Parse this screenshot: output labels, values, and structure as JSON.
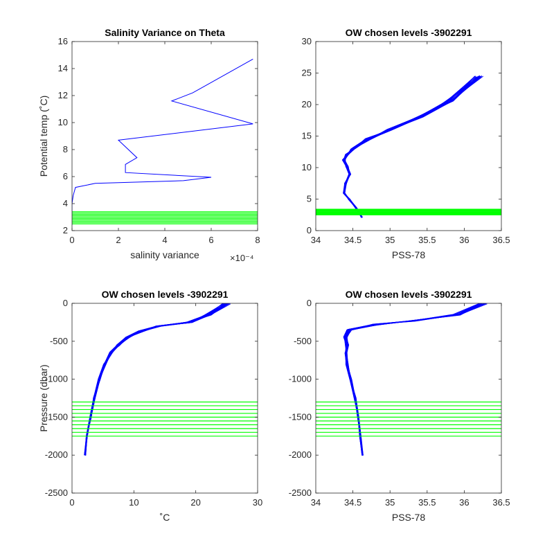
{
  "colors": {
    "profile": "#0000ff",
    "levels": "#00ff00",
    "axis": "#262626",
    "background": "#ffffff"
  },
  "chart_data": [
    {
      "type": "line",
      "title": "Salinity Variance on Theta",
      "xlabel": "salinity variance",
      "ylabel": "Potential temp (˚C)",
      "xlim": [
        0,
        8
      ],
      "ylim": [
        2,
        16
      ],
      "xticks": [
        "0",
        "2",
        "4",
        "6",
        "8"
      ],
      "yticks": [
        "2",
        "4",
        "6",
        "8",
        "10",
        "12",
        "14",
        "16"
      ],
      "x_exponent": "×10⁻⁴",
      "series": [
        {
          "kind": "profile",
          "x": [
            7.8,
            5.2,
            4.3,
            4.3,
            7.8,
            2.0,
            2.8,
            2.3,
            2.3,
            6.0,
            4.8,
            1.0,
            0.15,
            0.05,
            0.0,
            0.0
          ],
          "y": [
            14.7,
            12.2,
            11.6,
            11.6,
            9.9,
            8.7,
            7.4,
            6.9,
            6.3,
            5.95,
            5.7,
            5.5,
            5.2,
            4.6,
            4.0,
            2.4
          ]
        },
        {
          "kind": "chosen_levels",
          "y": [
            2.5,
            2.6,
            2.7,
            2.8,
            2.9,
            3.0,
            3.1,
            3.2,
            3.3,
            3.4
          ]
        }
      ]
    },
    {
      "type": "line",
      "title": "OW chosen levels -3902291",
      "xlabel": "PSS-78",
      "ylabel": "",
      "xlim": [
        34,
        36.5
      ],
      "ylim": [
        0,
        30
      ],
      "xticks": [
        "34",
        "34.5",
        "35",
        "35.5",
        "36",
        "36.5"
      ],
      "yticks": [
        "0",
        "5",
        "10",
        "15",
        "20",
        "25",
        "30"
      ],
      "series": [
        {
          "kind": "profile",
          "x": [
            34.62,
            34.55,
            34.45,
            34.38,
            34.4,
            34.46,
            34.42,
            34.38,
            34.42,
            34.5,
            34.7,
            35.0,
            35.4,
            35.8,
            36.2
          ],
          "y": [
            2.1,
            3.5,
            5.0,
            6.0,
            7.5,
            9.0,
            10.2,
            11.2,
            12.0,
            13.0,
            14.5,
            16.0,
            18.0,
            20.5,
            24.5
          ]
        },
        {
          "kind": "chosen_levels",
          "y": [
            2.5,
            2.6,
            2.7,
            2.8,
            2.9,
            3.0,
            3.1,
            3.2,
            3.3,
            3.4
          ]
        }
      ]
    },
    {
      "type": "line",
      "title": "OW chosen levels -3902291",
      "xlabel": "˚C",
      "ylabel": "Pressure (dbar)",
      "xlim": [
        0,
        30
      ],
      "ylim": [
        -2500,
        0
      ],
      "xticks": [
        "0",
        "10",
        "20",
        "30"
      ],
      "yticks": [
        "-2500",
        "-2000",
        "-1500",
        "-1000",
        "-500",
        "0"
      ],
      "series": [
        {
          "kind": "profile",
          "x": [
            2.1,
            2.4,
            3.0,
            3.6,
            4.4,
            5.3,
            6.3,
            7.5,
            9.0,
            11.0,
            14.0,
            19.0,
            22.0,
            25.0
          ],
          "y": [
            -2000,
            -1750,
            -1500,
            -1250,
            -1000,
            -800,
            -650,
            -550,
            -450,
            -370,
            -300,
            -250,
            -150,
            0
          ]
        },
        {
          "kind": "chosen_levels",
          "y": [
            -1300,
            -1350,
            -1400,
            -1450,
            -1500,
            -1550,
            -1600,
            -1650,
            -1700,
            -1750
          ]
        }
      ]
    },
    {
      "type": "line",
      "title": "OW chosen levels -3902291",
      "xlabel": "PSS-78",
      "ylabel": "",
      "xlim": [
        34,
        36.5
      ],
      "ylim": [
        -2500,
        0
      ],
      "xticks": [
        "34",
        "34.5",
        "35",
        "35.5",
        "36",
        "36.5"
      ],
      "yticks": [
        "-2500",
        "-2000",
        "-1500",
        "-1000",
        "-500",
        "0"
      ],
      "series": [
        {
          "kind": "profile",
          "x": [
            34.63,
            34.6,
            34.57,
            34.53,
            34.47,
            34.42,
            34.4,
            34.42,
            34.4,
            34.45,
            34.8,
            35.3,
            35.9,
            36.25
          ],
          "y": [
            -2000,
            -1750,
            -1500,
            -1250,
            -1000,
            -800,
            -650,
            -550,
            -450,
            -350,
            -280,
            -230,
            -150,
            0
          ]
        },
        {
          "kind": "chosen_levels",
          "y": [
            -1300,
            -1350,
            -1400,
            -1450,
            -1500,
            -1550,
            -1600,
            -1650,
            -1700,
            -1750
          ]
        }
      ]
    }
  ]
}
